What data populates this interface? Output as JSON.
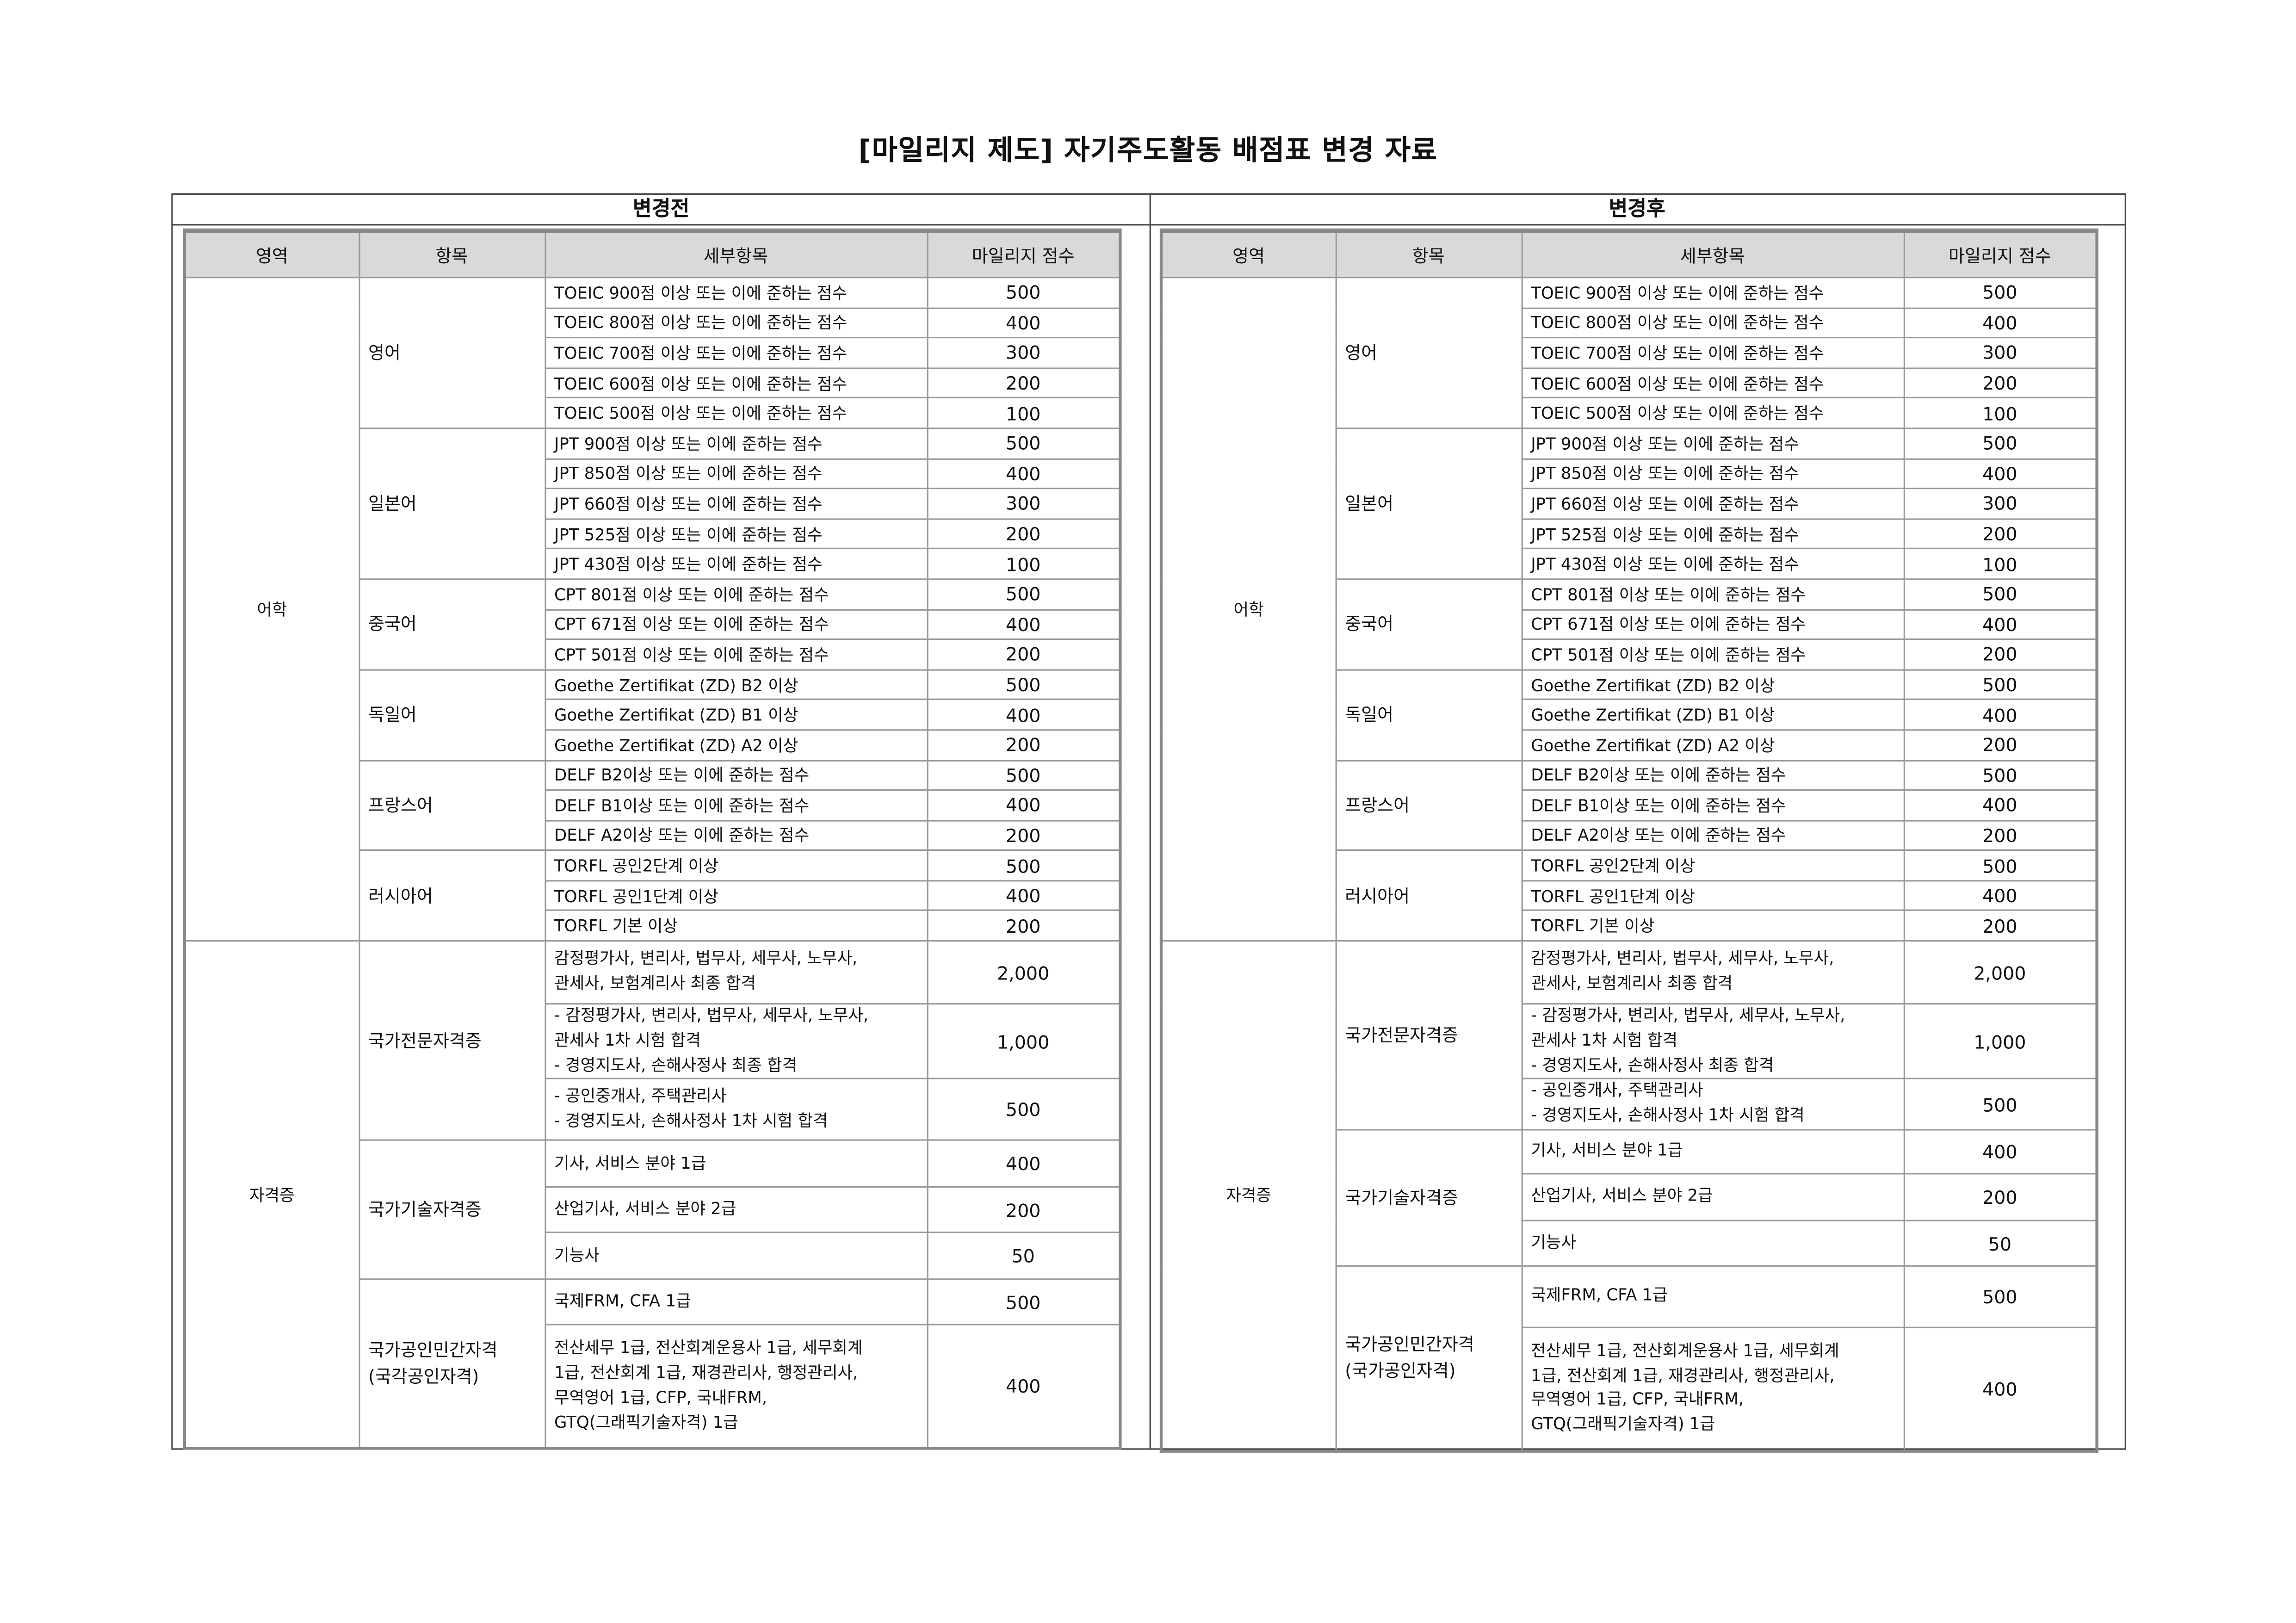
{
  "title": "[마일리지 제도] 자기주도활동 배점표 변경 자료",
  "headers": [
    "영역",
    "항목",
    "세부항목",
    "마일리지 점수"
  ],
  "before": {
    "label": "변경전",
    "sections": [
      {
        "area": "어학",
        "groups": [
          {
            "item": "영어",
            "rows": [
              [
                "TOEIC 900점 이상 또는 이에 준하는 점수",
                "500"
              ],
              [
                "TOEIC 800점 이상 또는 이에 준하는 점수",
                "400"
              ],
              [
                "TOEIC 700점 이상 또는 이에 준하는 점수",
                "300"
              ],
              [
                "TOEIC 600점 이상 또는 이에 준하는 점수",
                "200"
              ],
              [
                "TOEIC 500점 이상 또는 이에 준하는 점수",
                "100"
              ]
            ]
          },
          {
            "item": "일본어",
            "rows": [
              [
                "JPT 900점 이상 또는 이에 준하는 점수",
                "500"
              ],
              [
                "JPT 850점 이상 또는 이에 준하는 점수",
                "400"
              ],
              [
                "JPT 660점 이상 또는 이에 준하는 점수",
                "300"
              ],
              [
                "JPT 525점 이상 또는 이에 준하는 점수",
                "200"
              ],
              [
                "JPT 430점 이상 또는 이에 준하는 점수",
                "100"
              ]
            ]
          },
          {
            "item": "중국어",
            "rows": [
              [
                "CPT 801점 이상 또는 이에 준하는 점수",
                "500"
              ],
              [
                "CPT 671점 이상 또는 이에 준하는 점수",
                "400"
              ],
              [
                "CPT 501점 이상 또는 이에 준하는 점수",
                "200"
              ]
            ]
          },
          {
            "item": "독일어",
            "rows": [
              [
                "Goethe Zertifikat (ZD) B2 이상",
                "500"
              ],
              [
                "Goethe Zertifikat (ZD) B1 이상",
                "400"
              ],
              [
                "Goethe Zertifikat (ZD) A2 이상",
                "200"
              ]
            ]
          },
          {
            "item": "프랑스어",
            "rows": [
              [
                "DELF B2이상 또는 이에 준하는 점수",
                "500"
              ],
              [
                "DELF B1이상 또는 이에 준하는 점수",
                "400"
              ],
              [
                "DELF A2이상 또는 이에 준하는 점수",
                "200"
              ]
            ]
          },
          {
            "item": "러시아어",
            "rows": [
              [
                "TORFL 공인2단계 이상",
                "500"
              ],
              [
                "TORFL 공인1단계 이상",
                "400"
              ],
              [
                "TORFL 기본 이상",
                "200"
              ]
            ]
          }
        ]
      },
      {
        "area": "자격증",
        "groups": [
          {
            "item": "국가전문자격증",
            "rows": [
              [
                "감정평가사, 변리사, 법무사, 세무사, 노무사,\n관세사, 보험계리사 최종 합격",
                "2,000"
              ],
              [
                "- 감정평가사, 변리사, 법무사, 세무사, 노무사,\n   관세사 1차 시험 합격\n- 경영지도사, 손해사정사 최종 합격",
                "1,000"
              ],
              [
                "- 공인중개사, 주택관리사\n- 경영지도사, 손해사정사 1차 시험 합격",
                "500"
              ]
            ]
          },
          {
            "item": "국가기술자격증",
            "rows": [
              [
                "기사, 서비스 분야 1급",
                "400"
              ],
              [
                "산업기사, 서비스 분야 2급",
                "200"
              ],
              [
                "기능사",
                "50"
              ]
            ]
          },
          {
            "item": "국가공인민간자격\n(국각공인자격)",
            "rows": [
              [
                "국제FRM, CFA 1급",
                "500"
              ],
              [
                "전산세무 1급, 전산회계운용사 1급, 세무회계\n1급, 전산회계 1급, 재경관리사, 행정관리사,\n무역영어 1급, CFP, 국내FRM,\nGTQ(그래픽기술자격) 1급",
                "400"
              ]
            ]
          }
        ]
      }
    ]
  },
  "after": {
    "label": "변경후",
    "sections": [
      {
        "area": "어학",
        "groups": [
          {
            "item": "영어",
            "rows": [
              [
                "TOEIC 900점 이상 또는 이에 준하는 점수",
                "500"
              ],
              [
                "TOEIC 800점 이상 또는 이에 준하는 점수",
                "400"
              ],
              [
                "TOEIC 700점 이상 또는 이에 준하는 점수",
                "300"
              ],
              [
                "TOEIC 600점 이상 또는 이에 준하는 점수",
                "200"
              ],
              [
                "TOEIC 500점 이상 또는 이에 준하는 점수",
                "100"
              ]
            ]
          },
          {
            "item": "일본어",
            "rows": [
              [
                "JPT 900점 이상 또는 이에 준하는 점수",
                "500"
              ],
              [
                "JPT 850점 이상 또는 이에 준하는 점수",
                "400"
              ],
              [
                "JPT 660점 이상 또는 이에 준하는 점수",
                "300"
              ],
              [
                "JPT 525점 이상 또는 이에 준하는 점수",
                "200"
              ],
              [
                "JPT 430점 이상 또는 이에 준하는 점수",
                "100"
              ]
            ]
          },
          {
            "item": "중국어",
            "rows": [
              [
                "CPT 801점 이상 또는 이에 준하는 점수",
                "500"
              ],
              [
                "CPT 671점 이상 또는 이에 준하는 점수",
                "400"
              ],
              [
                "CPT 501점 이상 또는 이에 준하는 점수",
                "200"
              ]
            ]
          },
          {
            "item": "독일어",
            "rows": [
              [
                "Goethe Zertifikat (ZD) B2 이상",
                "500"
              ],
              [
                "Goethe Zertifikat (ZD) B1 이상",
                "400"
              ],
              [
                "Goethe Zertifikat (ZD) A2 이상",
                "200"
              ]
            ]
          },
          {
            "item": "프랑스어",
            "rows": [
              [
                "DELF B2이상 또는 이에 준하는 점수",
                "500"
              ],
              [
                "DELF B1이상 또는 이에 준하는 점수",
                "400"
              ],
              [
                "DELF A2이상 또는 이에 준하는 점수",
                "200"
              ]
            ]
          },
          {
            "item": "러시아어",
            "rows": [
              [
                "TORFL 공인2단계 이상",
                "500"
              ],
              [
                "TORFL 공인1단계 이상",
                "400"
              ],
              [
                "TORFL 기본 이상",
                "200"
              ]
            ]
          }
        ]
      },
      {
        "area": "자격증",
        "groups": [
          {
            "item": "국가전문자격증",
            "rows": [
              [
                "감정평가사, 변리사, 법무사, 세무사, 노무사,\n관세사, 보험계리사 최종 합격",
                "2,000"
              ],
              [
                "- 감정평가사, 변리사, 법무사, 세무사, 노무사,\n   관세사 1차 시험 합격\n- 경영지도사, 손해사정사 최종 합격",
                "1,000"
              ],
              [
                "- 공인중개사, 주택관리사\n- 경영지도사, 손해사정사 1차 시험 합격",
                "500"
              ]
            ]
          },
          {
            "item": "국가기술자격증",
            "rows": [
              [
                "기사, 서비스 분야 1급",
                "400"
              ],
              [
                "산업기사, 서비스 분야 2급",
                "200"
              ],
              [
                "기능사",
                "50"
              ]
            ]
          },
          {
            "item": "국가공인민간자격\n(국가공인자격)",
            "rows": [
              [
                "국제FRM, CFA 1급",
                "500"
              ],
              [
                "전산세무 1급, 전산회계운용사 1급, 세무회계\n1급, 전산회계 1급, 재경관리사, 행정관리사,\n무역영어 1급, CFP, 국내FRM,\nGTQ(그래픽기술자격) 1급",
                "400"
              ]
            ]
          }
        ]
      }
    ]
  }
}
